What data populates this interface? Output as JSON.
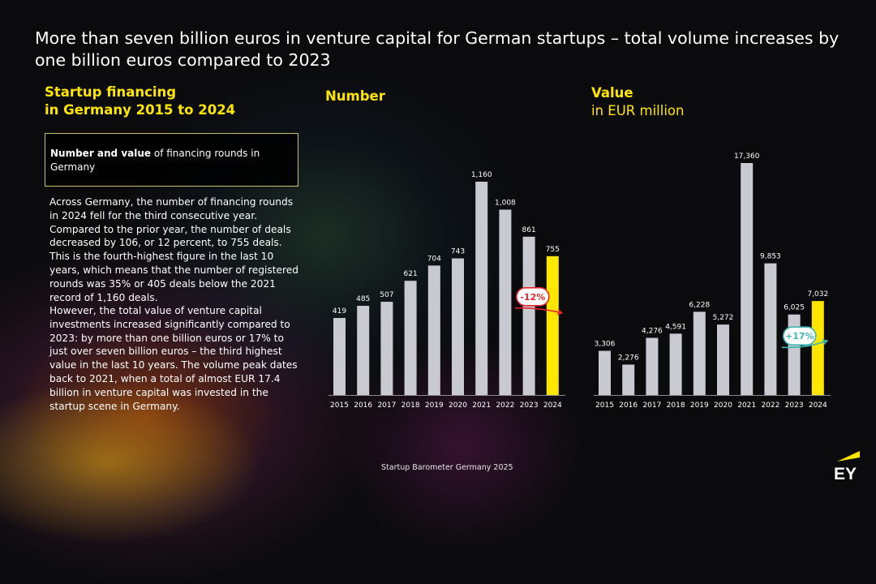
{
  "title": "More than seven billion euros in venture capital for German startups – total volume increases by one billion euros compared to 2023",
  "left_panel": {
    "heading_line1": "Startup financing",
    "heading_line2": "in Germany 2015 to 2024",
    "box_bold": "Number and value",
    "box_rest": " of financing rounds in Germany",
    "paragraph1": "Across Germany, the number of financing rounds in 2024 fell for the third consecutive year. Compared to the prior year, the number of deals decreased by 106, or 12 percent, to 755 deals. This is the fourth-highest figure in the last 10 years, which means that the number of registered rounds was 35% or 405 deals below the 2021 record of 1,160 deals.",
    "paragraph2": "However, the total value of venture capital investments increased significantly compared to 2023: by more than one billion euros or 17% to just over seven billion euros – the third highest value in the last 10 years. The volume peak dates back to 2021, when a total of almost EUR 17.4 billion in venture capital was invested in the startup scene in Germany."
  },
  "footer": {
    "source": "Startup Barometer Germany 2025",
    "logo_text": "EY"
  },
  "colors": {
    "accent": "#ffe600",
    "bar": "#c9c9d2",
    "highlight": "#ffe600",
    "decrease": "#e3262c",
    "increase": "#3fb6b0"
  },
  "chart_data": [
    {
      "type": "bar",
      "title": "Number",
      "subtitle": "",
      "categories": [
        "2015",
        "2016",
        "2017",
        "2018",
        "2019",
        "2020",
        "2021",
        "2022",
        "2023",
        "2024"
      ],
      "values": [
        419,
        485,
        507,
        621,
        704,
        743,
        1160,
        1008,
        861,
        755
      ],
      "value_labels": [
        "419",
        "485",
        "507",
        "621",
        "704",
        "743",
        "1,160",
        "1,008",
        "861",
        "755"
      ],
      "highlight_index": 9,
      "ylim": [
        0,
        1300
      ],
      "grid": false,
      "legend": "none",
      "annotation": {
        "text": "-12%",
        "direction": "down"
      }
    },
    {
      "type": "bar",
      "title": "Value",
      "subtitle": "in EUR million",
      "categories": [
        "2015",
        "2016",
        "2017",
        "2018",
        "2019",
        "2020",
        "2021",
        "2022",
        "2023",
        "2024"
      ],
      "values": [
        3306,
        2276,
        4276,
        4591,
        6228,
        5272,
        17360,
        9853,
        6025,
        7032
      ],
      "value_labels": [
        "3,306",
        "2,276",
        "4,276",
        "4,591",
        "6,228",
        "5,272",
        "17,360",
        "9,853",
        "6,025",
        "7,032"
      ],
      "highlight_index": 9,
      "ylim": [
        0,
        18500
      ],
      "grid": false,
      "legend": "none",
      "annotation": {
        "text": "+17%",
        "direction": "up"
      }
    }
  ]
}
